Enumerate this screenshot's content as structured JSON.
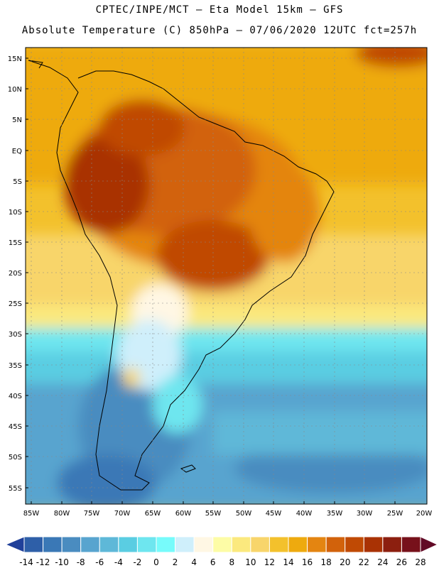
{
  "header": {
    "line1": "CPTEC/INPE/MCT –  Eta Model 15km – GFS",
    "line2": "Absolute Temperature (C) 850hPa – 07/06/2020 12UTC fct=257h"
  },
  "map": {
    "lat_labels": [
      "15N",
      "10N",
      "5N",
      "EQ",
      "5S",
      "10S",
      "15S",
      "20S",
      "25S",
      "30S",
      "35S",
      "40S",
      "45S",
      "50S",
      "55S"
    ],
    "lon_labels": [
      "85W",
      "80W",
      "75W",
      "70W",
      "65W",
      "60W",
      "55W",
      "50W",
      "45W",
      "40W",
      "35W",
      "30W",
      "25W",
      "20W"
    ]
  },
  "colorbar": {
    "labels": [
      "-14",
      "-12",
      "-10",
      "-8",
      "-6",
      "-4",
      "-2",
      "0",
      "2",
      "4",
      "6",
      "8",
      "10",
      "12",
      "14",
      "16",
      "18",
      "20",
      "22",
      "24",
      "26",
      "28"
    ],
    "colors": [
      "#20409a",
      "#2e5fa8",
      "#3a78b6",
      "#4a8cc0",
      "#58a4cf",
      "#5eb8d8",
      "#5acde2",
      "#6ee6ef",
      "#77fbfb",
      "#cfeffb",
      "#fff7e4",
      "#fdfca6",
      "#fbe97e",
      "#f8d56b",
      "#f3c12c",
      "#eeaa0e",
      "#e48511",
      "#d2620b",
      "#c04a04",
      "#a93204",
      "#8c1f0f",
      "#77111b",
      "#620a26"
    ]
  }
}
